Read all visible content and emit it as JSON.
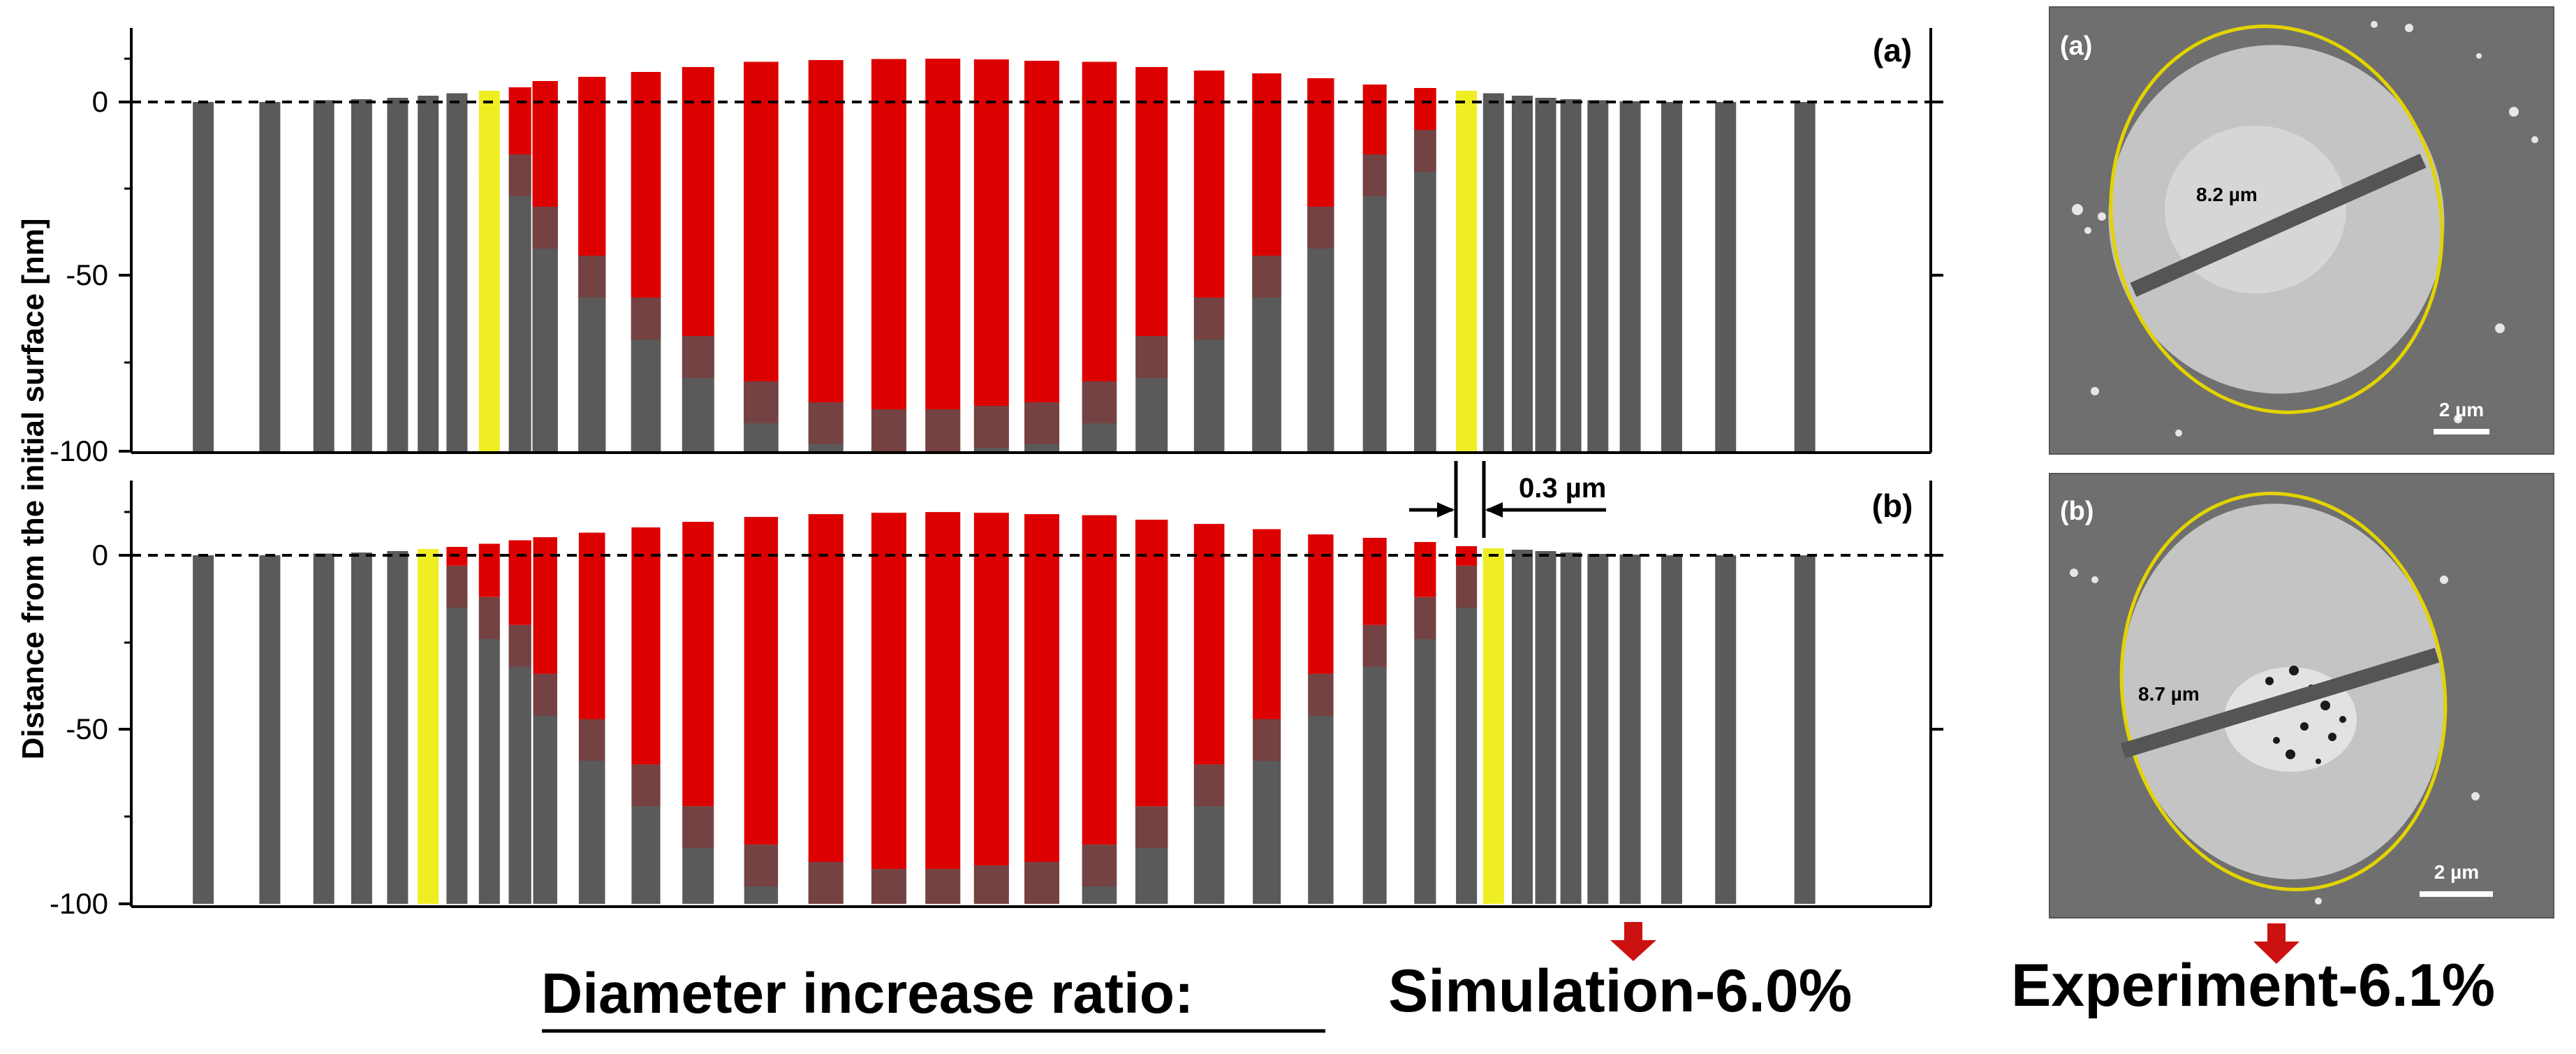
{
  "colors": {
    "substrate": "#5a5a5a",
    "deposit": "#dd0000",
    "highlight": "#eeee22",
    "ellipse": "#e3d300",
    "arrow": "#cc1111",
    "sem_background": "#6f6f6f",
    "sem_spot": "#c8c8c8"
  },
  "ylabel": "Distance from the initial surface [nm]",
  "annotation": {
    "spacing_label": "0.3 µm"
  },
  "summary": {
    "label": "Diameter increase ratio:",
    "simulation": "Simulation-6.0%",
    "experiment": "Experiment-6.1%"
  },
  "sem_images": [
    {
      "panel_label": "(a)",
      "diameter_label": "8.2 µm",
      "scale_label": "2 µm"
    },
    {
      "panel_label": "(b)",
      "diameter_label": "8.7 µm",
      "scale_label": "2 µm"
    }
  ],
  "chart_data": [
    {
      "type": "bar",
      "panel_label": "(a)",
      "ylabel": "Distance from the initial surface [nm]",
      "ylim": [
        -100,
        20
      ],
      "yticks": [
        0,
        -50,
        -100
      ],
      "zero_line": "dashed",
      "x": [
        0.04,
        0.077,
        0.107,
        0.128,
        0.148,
        0.165,
        0.181,
        0.199,
        0.216,
        0.23,
        0.256,
        0.286,
        0.315,
        0.35,
        0.386,
        0.421,
        0.451,
        0.478,
        0.506,
        0.538,
        0.567,
        0.599,
        0.631,
        0.661,
        0.691,
        0.719,
        0.742,
        0.757,
        0.773,
        0.786,
        0.8,
        0.815,
        0.833,
        0.856,
        0.886,
        0.93
      ],
      "top": [
        0,
        0,
        0.5,
        0.8,
        1.2,
        1.8,
        2.5,
        3.2,
        4.2,
        6,
        7.2,
        8.6,
        10,
        11.5,
        12,
        12.3,
        12.4,
        12.2,
        11.8,
        11.5,
        10,
        9,
        8.2,
        6.8,
        5,
        4,
        3.2,
        2.5,
        1.8,
        1.2,
        0.8,
        0.5,
        0.2,
        0,
        0,
        0
      ],
      "deposit_bottom": [
        null,
        null,
        null,
        null,
        null,
        null,
        null,
        -8,
        -15,
        -30,
        -44,
        -56,
        -67,
        -80,
        -86,
        -88,
        -88,
        -87,
        -86,
        -80,
        -67,
        -56,
        -44,
        -30,
        -15,
        -8,
        null,
        null,
        null,
        null,
        null,
        null,
        null,
        null,
        null,
        null
      ],
      "highlighted": [
        7,
        26
      ]
    },
    {
      "type": "bar",
      "panel_label": "(b)",
      "ylabel": "Distance from the initial surface [nm]",
      "ylim": [
        -100,
        20
      ],
      "yticks": [
        0,
        -50,
        -100
      ],
      "zero_line": "dashed",
      "x": [
        0.04,
        0.077,
        0.107,
        0.128,
        0.148,
        0.165,
        0.181,
        0.199,
        0.216,
        0.23,
        0.256,
        0.286,
        0.315,
        0.35,
        0.386,
        0.421,
        0.451,
        0.478,
        0.506,
        0.538,
        0.567,
        0.599,
        0.631,
        0.661,
        0.691,
        0.719,
        0.742,
        0.757,
        0.773,
        0.786,
        0.8,
        0.815,
        0.833,
        0.856,
        0.886,
        0.93
      ],
      "top": [
        0,
        0,
        0.5,
        0.8,
        1.2,
        1.8,
        2.4,
        3.3,
        4.3,
        5.2,
        6.5,
        8,
        9.6,
        11,
        11.8,
        12.2,
        12.4,
        12.2,
        11.8,
        11.5,
        10.2,
        9,
        7.5,
        6,
        5,
        3.8,
        2.6,
        2,
        1.6,
        1.2,
        0.8,
        0.4,
        0.2,
        0,
        0,
        0
      ],
      "deposit_bottom": [
        null,
        null,
        null,
        null,
        null,
        null,
        -3,
        -12,
        -20,
        -34,
        -47,
        -60,
        -72,
        -83,
        -88,
        -90,
        -90,
        -89,
        -88,
        -83,
        -72,
        -60,
        -47,
        -34,
        -20,
        -12,
        -3,
        null,
        null,
        null,
        null,
        null,
        null,
        null,
        null,
        null
      ],
      "highlighted": [
        5,
        27
      ]
    }
  ]
}
